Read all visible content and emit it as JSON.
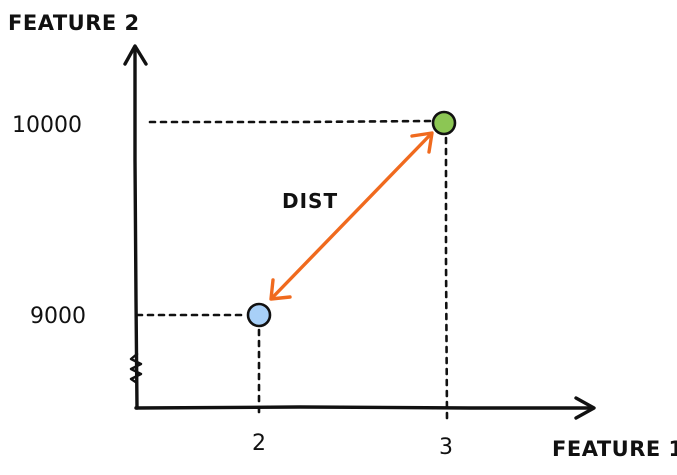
{
  "axes": {
    "y_title": "FEATURE 2",
    "x_title": "FEATURE 1",
    "y_ticks": [
      "10000",
      "9000"
    ],
    "x_ticks": [
      "2",
      "3"
    ],
    "y_axis_break": true
  },
  "points": [
    {
      "name": "point-a",
      "feature1": 2,
      "feature2": 9000,
      "color": "#a8d0f8"
    },
    {
      "name": "point-b",
      "feature1": 3,
      "feature2": 10000,
      "color": "#8cc654"
    }
  ],
  "distance": {
    "label": "DIST",
    "color": "#f06a1e"
  }
}
